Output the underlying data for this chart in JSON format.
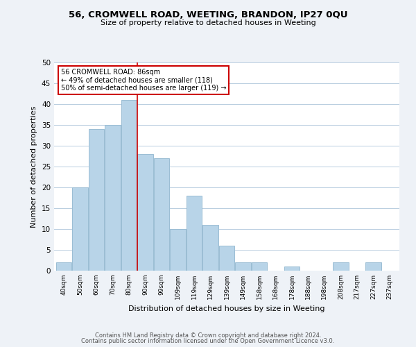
{
  "title": "56, CROMWELL ROAD, WEETING, BRANDON, IP27 0QU",
  "subtitle": "Size of property relative to detached houses in Weeting",
  "xlabel": "Distribution of detached houses by size in Weeting",
  "ylabel": "Number of detached properties",
  "bar_labels": [
    "40sqm",
    "50sqm",
    "60sqm",
    "70sqm",
    "80sqm",
    "90sqm",
    "99sqm",
    "109sqm",
    "119sqm",
    "129sqm",
    "139sqm",
    "149sqm",
    "158sqm",
    "168sqm",
    "178sqm",
    "188sqm",
    "198sqm",
    "208sqm",
    "217sqm",
    "227sqm",
    "237sqm"
  ],
  "bar_values": [
    2,
    20,
    34,
    35,
    41,
    28,
    27,
    10,
    18,
    11,
    6,
    2,
    2,
    0,
    1,
    0,
    0,
    2,
    0,
    2,
    0
  ],
  "bar_color": "#b8d4e8",
  "bar_edge_color": "#9bbdd4",
  "vline_color": "#cc0000",
  "annotation_title": "56 CROMWELL ROAD: 86sqm",
  "annotation_line1": "← 49% of detached houses are smaller (118)",
  "annotation_line2": "50% of semi-detached houses are larger (119) →",
  "annotation_box_color": "white",
  "annotation_box_edge": "#cc0000",
  "ylim": [
    0,
    50
  ],
  "yticks": [
    0,
    5,
    10,
    15,
    20,
    25,
    30,
    35,
    40,
    45,
    50
  ],
  "footer1": "Contains HM Land Registry data © Crown copyright and database right 2024.",
  "footer2": "Contains public sector information licensed under the Open Government Licence v3.0.",
  "background_color": "#eef2f7",
  "plot_bg_color": "white",
  "grid_color": "#b8cde0"
}
